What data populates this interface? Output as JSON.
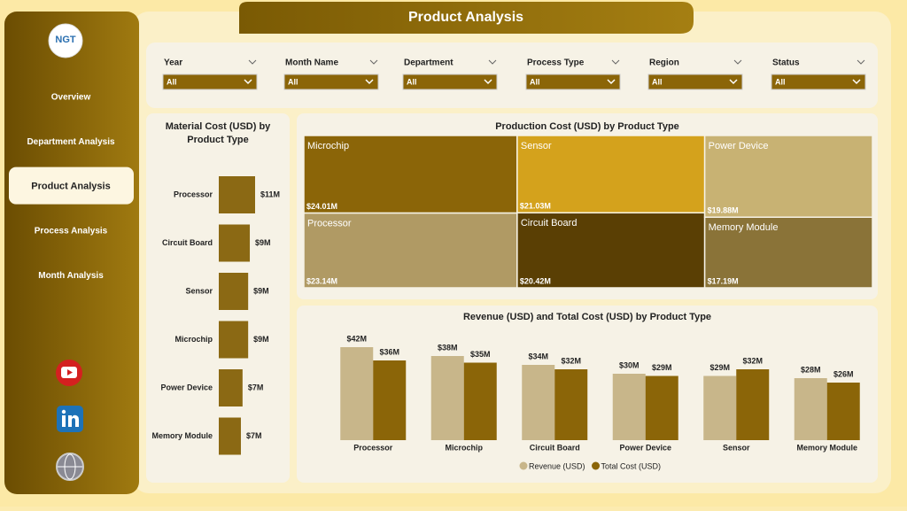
{
  "header": {
    "title": "Product Analysis"
  },
  "sidebar": {
    "logo": "NGT",
    "nav": [
      "Overview",
      "Department Analysis",
      "Product Analysis",
      "Process Analysis",
      "Month Analysis"
    ],
    "active": 2
  },
  "filters": [
    {
      "label": "Year",
      "value": "All"
    },
    {
      "label": "Month Name",
      "value": "All"
    },
    {
      "label": "Department",
      "value": "All"
    },
    {
      "label": "Process Type",
      "value": "All"
    },
    {
      "label": "Region",
      "value": "All"
    },
    {
      "label": "Status",
      "value": "All"
    }
  ],
  "chart_data": [
    {
      "type": "hbar",
      "title": "Material Cost (USD) by Product Type",
      "categories": [
        "Processor",
        "Circuit Board",
        "Sensor",
        "Microchip",
        "Power Device",
        "Memory Module"
      ],
      "values": [
        11,
        9.4,
        8.9,
        8.9,
        7.2,
        6.7
      ],
      "value_labels": [
        "$11M",
        "$9M",
        "$9M",
        "$9M",
        "$7M",
        "$7M"
      ],
      "color": "#8b6914"
    },
    {
      "type": "treemap",
      "title": "Production Cost (USD) by Product Type",
      "categories": [
        "Microchip",
        "Processor",
        "Sensor",
        "Circuit Board",
        "Power Device",
        "Memory Module"
      ],
      "values": [
        24.01,
        23.14,
        21.03,
        20.42,
        19.88,
        17.19
      ],
      "value_labels": [
        "$24.01M",
        "$23.14M",
        "$21.03M",
        "$20.42M",
        "$19.88M",
        "$17.19M"
      ],
      "colors": [
        "#8b6508",
        "#b09a64",
        "#d4a21c",
        "#5a3f04",
        "#c8b273",
        "#8a7338"
      ]
    },
    {
      "type": "bar",
      "title": "Revenue (USD) and Total Cost (USD) by Product Type",
      "categories": [
        "Processor",
        "Microchip",
        "Circuit Board",
        "Power Device",
        "Sensor",
        "Memory Module"
      ],
      "series": [
        {
          "name": "Revenue (USD)",
          "color": "#c8b68a",
          "values": [
            42,
            38,
            34,
            30,
            29,
            28
          ],
          "value_labels": [
            "$42M",
            "$38M",
            "$34M",
            "$30M",
            "$29M",
            "$28M"
          ]
        },
        {
          "name": "Total Cost (USD)",
          "color": "#8b6508",
          "values": [
            36,
            35,
            32,
            29,
            32,
            26
          ],
          "value_labels": [
            "$36M",
            "$35M",
            "$32M",
            "$29M",
            "$32M",
            "$26M"
          ]
        }
      ],
      "legend": "bottom"
    }
  ]
}
